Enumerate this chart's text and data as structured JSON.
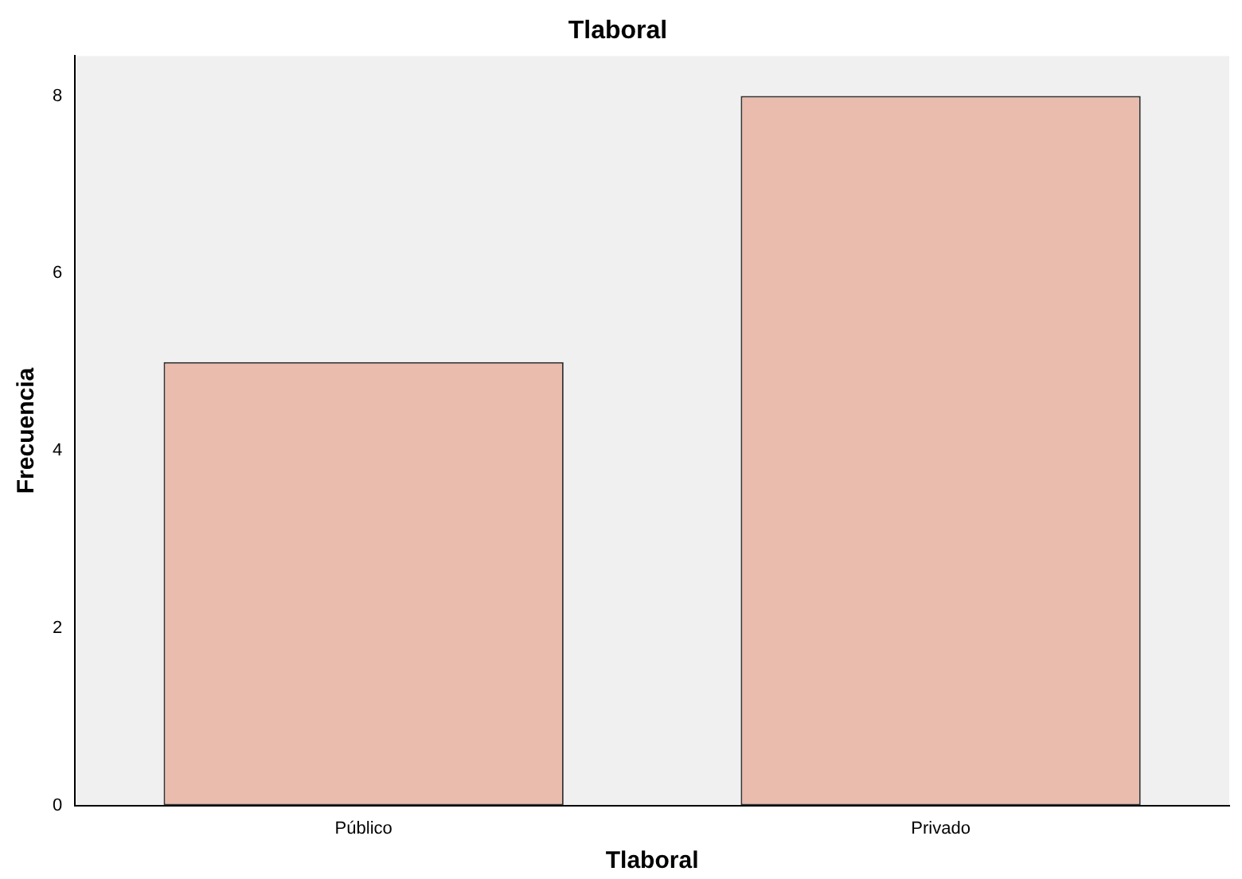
{
  "chart_data": {
    "type": "bar",
    "title": "Tlaboral",
    "xlabel": "Tlaboral",
    "ylabel": "Frecuencia",
    "categories": [
      "Público",
      "Privado"
    ],
    "values": [
      5,
      8
    ],
    "color": "#eabcad",
    "ylim": [
      0,
      8.45
    ],
    "yticks": [
      0,
      2,
      4,
      6,
      8
    ]
  }
}
